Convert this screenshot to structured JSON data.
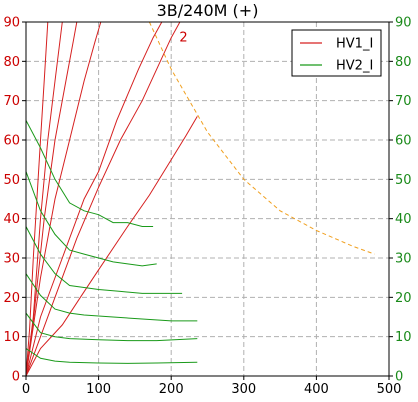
{
  "chart_data": {
    "type": "line",
    "title": "3B/240M (+)",
    "xlim": [
      0,
      500
    ],
    "ylim": [
      0,
      90
    ],
    "y2lim": [
      0,
      90
    ],
    "xticks": [
      0,
      100,
      200,
      300,
      400,
      500
    ],
    "yticks": [
      0,
      10,
      20,
      30,
      40,
      50,
      60,
      70,
      80,
      90
    ],
    "grid": true,
    "legend_position": "top-right",
    "legend": [
      {
        "label": "HV1_I",
        "color": "#d62020"
      },
      {
        "label": "HV2_I",
        "color": "#1a9a1a"
      }
    ],
    "annotations": [
      {
        "text": "2",
        "x": 217,
        "y": 84,
        "color": "#cc0000"
      }
    ],
    "series": [
      {
        "group": "HV1_I",
        "color": "#d62020",
        "axis": "left",
        "points": [
          [
            0,
            0
          ],
          [
            5,
            12
          ],
          [
            10,
            30
          ],
          [
            15,
            45
          ],
          [
            20,
            60
          ],
          [
            25,
            75
          ],
          [
            30,
            90
          ]
        ]
      },
      {
        "group": "HV1_I",
        "color": "#d62020",
        "axis": "left",
        "points": [
          [
            0,
            0
          ],
          [
            10,
            15
          ],
          [
            20,
            40
          ],
          [
            30,
            60
          ],
          [
            40,
            75
          ],
          [
            50,
            90
          ]
        ]
      },
      {
        "group": "HV1_I",
        "color": "#d62020",
        "axis": "left",
        "points": [
          [
            0,
            0
          ],
          [
            10,
            14
          ],
          [
            25,
            40
          ],
          [
            40,
            60
          ],
          [
            55,
            75
          ],
          [
            65,
            85
          ],
          [
            70,
            90
          ]
        ]
      },
      {
        "group": "HV1_I",
        "color": "#d62020",
        "axis": "left",
        "points": [
          [
            0,
            0
          ],
          [
            20,
            25
          ],
          [
            40,
            45
          ],
          [
            60,
            60
          ],
          [
            80,
            75
          ],
          [
            95,
            85
          ],
          [
            103,
            90
          ]
        ]
      },
      {
        "group": "HV1_I",
        "color": "#d62020",
        "axis": "left",
        "points": [
          [
            0,
            0
          ],
          [
            20,
            15
          ],
          [
            50,
            30
          ],
          [
            80,
            45
          ],
          [
            100,
            52
          ],
          [
            125,
            65
          ],
          [
            155,
            78
          ],
          [
            175,
            86
          ],
          [
            187,
            90
          ]
        ]
      },
      {
        "group": "HV1_I",
        "color": "#d62020",
        "axis": "left",
        "points": [
          [
            0,
            0
          ],
          [
            20,
            10
          ],
          [
            40,
            20
          ],
          [
            70,
            35
          ],
          [
            100,
            48
          ],
          [
            130,
            60
          ],
          [
            160,
            70
          ],
          [
            180,
            78
          ],
          [
            200,
            86
          ],
          [
            212,
            90
          ]
        ]
      },
      {
        "group": "HV1_I",
        "color": "#d62020",
        "axis": "left",
        "points": [
          [
            0,
            0
          ],
          [
            20,
            7
          ],
          [
            50,
            13
          ],
          [
            75,
            20
          ],
          [
            100,
            27
          ],
          [
            140,
            38
          ],
          [
            170,
            46
          ],
          [
            200,
            55
          ],
          [
            220,
            61
          ],
          [
            236,
            66
          ]
        ]
      },
      {
        "group": "HV2_I",
        "color": "#1a9a1a",
        "axis": "right",
        "points": [
          [
            0,
            65
          ],
          [
            20,
            58
          ],
          [
            40,
            50
          ],
          [
            60,
            44
          ],
          [
            80,
            42
          ],
          [
            100,
            41
          ],
          [
            120,
            39
          ],
          [
            140,
            39
          ],
          [
            160,
            38
          ],
          [
            175,
            38
          ]
        ]
      },
      {
        "group": "HV2_I",
        "color": "#1a9a1a",
        "axis": "right",
        "points": [
          [
            0,
            52
          ],
          [
            20,
            42
          ],
          [
            40,
            36
          ],
          [
            60,
            32
          ],
          [
            80,
            31
          ],
          [
            100,
            30
          ],
          [
            120,
            29
          ],
          [
            140,
            28.5
          ],
          [
            160,
            28
          ],
          [
            180,
            28.5
          ]
        ]
      },
      {
        "group": "HV2_I",
        "color": "#1a9a1a",
        "axis": "right",
        "points": [
          [
            0,
            38
          ],
          [
            20,
            31
          ],
          [
            40,
            26
          ],
          [
            60,
            23
          ],
          [
            80,
            22.5
          ],
          [
            100,
            22
          ],
          [
            130,
            21.5
          ],
          [
            160,
            21
          ],
          [
            190,
            21
          ],
          [
            215,
            21
          ]
        ]
      },
      {
        "group": "HV2_I",
        "color": "#1a9a1a",
        "axis": "right",
        "points": [
          [
            0,
            26
          ],
          [
            20,
            20.5
          ],
          [
            40,
            17
          ],
          [
            60,
            16
          ],
          [
            80,
            15.5
          ],
          [
            120,
            15
          ],
          [
            160,
            14.5
          ],
          [
            200,
            14
          ],
          [
            236,
            14
          ]
        ]
      },
      {
        "group": "HV2_I",
        "color": "#1a9a1a",
        "axis": "right",
        "points": [
          [
            0,
            16
          ],
          [
            20,
            11
          ],
          [
            40,
            10
          ],
          [
            60,
            9.5
          ],
          [
            100,
            9.2
          ],
          [
            140,
            9
          ],
          [
            180,
            9
          ],
          [
            236,
            9.5
          ]
        ]
      },
      {
        "group": "HV2_I",
        "color": "#1a9a1a",
        "axis": "right",
        "points": [
          [
            0,
            7
          ],
          [
            20,
            4.5
          ],
          [
            40,
            3.8
          ],
          [
            60,
            3.5
          ],
          [
            100,
            3.3
          ],
          [
            140,
            3.2
          ],
          [
            180,
            3.3
          ],
          [
            236,
            3.5
          ]
        ]
      },
      {
        "group": "limit",
        "color": "#f0a020",
        "dashed": true,
        "axis": "left",
        "points": [
          [
            170,
            90
          ],
          [
            200,
            78
          ],
          [
            250,
            62
          ],
          [
            300,
            50
          ],
          [
            350,
            42
          ],
          [
            400,
            37
          ],
          [
            450,
            33
          ],
          [
            480,
            31
          ]
        ]
      }
    ]
  }
}
